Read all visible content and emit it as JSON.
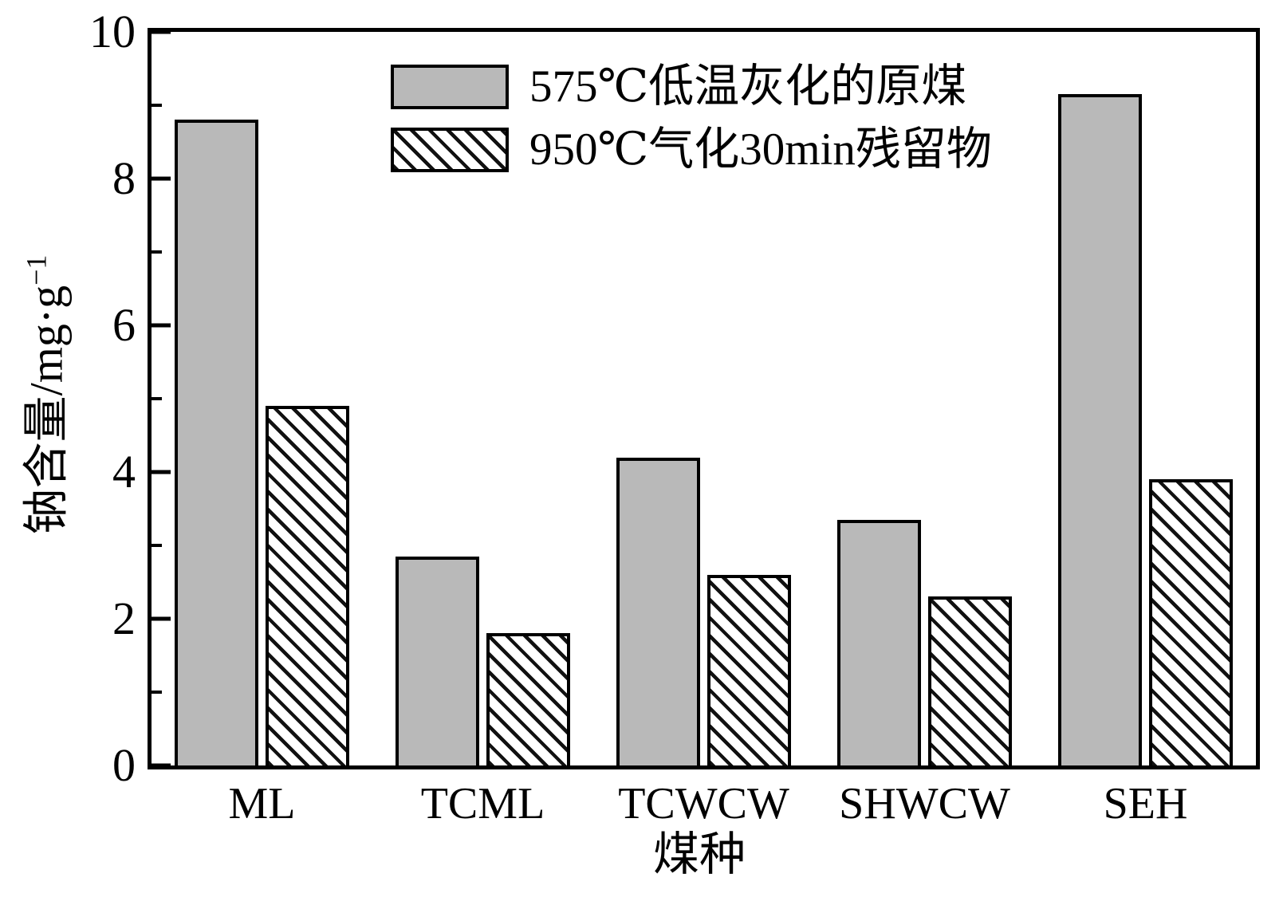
{
  "figure": {
    "background": "#ffffff",
    "ink_color": "#000000"
  },
  "chart_data": {
    "type": "bar",
    "title": "",
    "xlabel": "煤种",
    "ylabel": "钠含量/mg·g⁻¹",
    "ylabel_base": "钠含量/mg·g",
    "ylabel_sup": "−1",
    "categories": [
      "ML",
      "TCML",
      "TCWCW",
      "SHWCW",
      "SEH"
    ],
    "series": [
      {
        "name": "575℃低温灰化的原煤",
        "style": "solid",
        "color": "#b9b9b9",
        "values": [
          8.8,
          2.85,
          4.2,
          3.35,
          9.15
        ]
      },
      {
        "name": "950℃气化30min残留物",
        "style": "hatched",
        "color": "#ffffff",
        "hatch_color": "#000000",
        "values": [
          4.9,
          1.8,
          2.6,
          2.3,
          3.9
        ]
      }
    ],
    "ylim": [
      0,
      10
    ],
    "yticks": [
      0,
      2,
      4,
      6,
      8,
      10
    ],
    "yticks_minor": [
      1,
      3,
      5,
      7,
      9
    ],
    "grid": false,
    "legend_position": "top-center"
  }
}
